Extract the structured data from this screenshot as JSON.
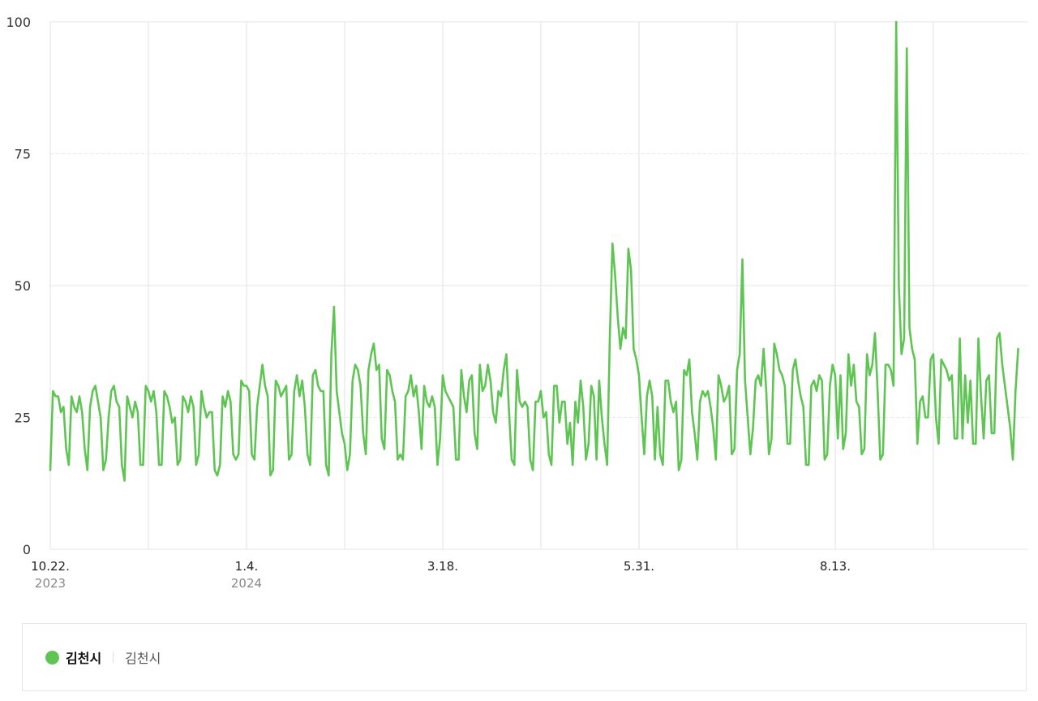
{
  "chart_data": {
    "type": "line",
    "title": "",
    "xlabel": "",
    "ylabel": "",
    "ylim": [
      0,
      100
    ],
    "yticks": [
      "0",
      "25",
      "50",
      "75",
      "100"
    ],
    "ytick_values": [
      0,
      25,
      50,
      75,
      100
    ],
    "xticks": [
      {
        "label": "10.22.",
        "year": "2023",
        "index": 0
      },
      {
        "label": "1.4.",
        "year": "2024",
        "index": 74
      },
      {
        "label": "3.18.",
        "year": "",
        "index": 148
      },
      {
        "label": "5.31.",
        "year": "",
        "index": 222
      },
      {
        "label": "8.13.",
        "year": "",
        "index": 296
      }
    ],
    "grid": true,
    "series": [
      {
        "name": "김천시",
        "color": "#5ec553",
        "values": [
          15,
          30,
          29,
          29,
          26,
          27,
          19,
          16,
          29,
          27,
          26,
          29,
          26,
          19,
          15,
          27,
          30,
          31,
          28,
          25,
          15,
          17,
          25,
          30,
          31,
          28,
          27,
          16,
          13,
          29,
          27,
          25,
          28,
          26,
          16,
          16,
          31,
          30,
          28,
          30,
          26,
          16,
          16,
          30,
          29,
          27,
          24,
          25,
          16,
          17,
          29,
          28,
          26,
          29,
          27,
          16,
          18,
          30,
          27,
          25,
          26,
          26,
          15,
          14,
          16,
          29,
          27,
          30,
          28,
          18,
          17,
          18,
          32,
          31,
          31,
          30,
          18,
          17,
          27,
          31,
          35,
          31,
          29,
          14,
          15,
          32,
          31,
          29,
          30,
          31,
          17,
          18,
          30,
          33,
          29,
          32,
          27,
          18,
          16,
          33,
          34,
          31,
          30,
          30,
          16,
          14,
          37,
          46,
          30,
          26,
          22,
          20,
          15,
          18,
          32,
          35,
          34,
          31,
          22,
          18,
          34,
          37,
          39,
          34,
          35,
          21,
          19,
          34,
          33,
          30,
          28,
          17,
          18,
          17,
          29,
          30,
          33,
          29,
          31,
          26,
          19,
          31,
          28,
          27,
          29,
          27,
          16,
          21,
          33,
          30,
          29,
          28,
          27,
          17,
          17,
          34,
          29,
          26,
          32,
          33,
          22,
          19,
          35,
          30,
          31,
          35,
          32,
          26,
          24,
          30,
          29,
          34,
          37,
          26,
          17,
          16,
          34,
          28,
          27,
          28,
          27,
          17,
          15,
          28,
          28,
          30,
          25,
          26,
          18,
          16,
          31,
          31,
          24,
          28,
          28,
          20,
          24,
          16,
          28,
          24,
          32,
          27,
          17,
          20,
          31,
          29,
          17,
          32,
          25,
          20,
          16,
          40,
          58,
          52,
          44,
          38,
          42,
          40,
          57,
          53,
          38,
          36,
          33,
          25,
          18,
          29,
          32,
          29,
          17,
          27,
          18,
          16,
          32,
          32,
          28,
          26,
          28,
          15,
          17,
          34,
          33,
          36,
          26,
          22,
          17,
          28,
          30,
          29,
          30,
          27,
          23,
          17,
          33,
          31,
          28,
          29,
          31,
          18,
          19,
          34,
          37,
          55,
          32,
          25,
          18,
          23,
          32,
          33,
          31,
          38,
          30,
          18,
          21,
          39,
          37,
          34,
          33,
          31,
          20,
          20,
          34,
          36,
          32,
          29,
          27,
          16,
          16,
          31,
          32,
          30,
          33,
          32,
          17,
          18,
          31,
          35,
          33,
          21,
          33,
          19,
          22,
          37,
          31,
          35,
          28,
          27,
          18,
          19,
          37,
          33,
          35,
          41,
          30,
          17,
          18,
          35,
          35,
          34,
          31,
          100,
          50,
          37,
          40,
          95,
          42,
          38,
          36,
          20,
          28,
          29,
          25,
          25,
          36,
          37,
          25,
          20,
          36,
          35,
          34,
          32,
          33,
          21,
          21,
          40,
          21,
          33,
          24,
          32,
          20,
          20,
          40,
          29,
          21,
          32,
          33,
          22,
          22,
          40,
          41,
          35,
          31,
          27,
          23,
          17,
          30,
          38
        ]
      }
    ]
  },
  "legend": {
    "series_name": "김천시",
    "region_label": "김천시",
    "color": "#5ec553"
  }
}
